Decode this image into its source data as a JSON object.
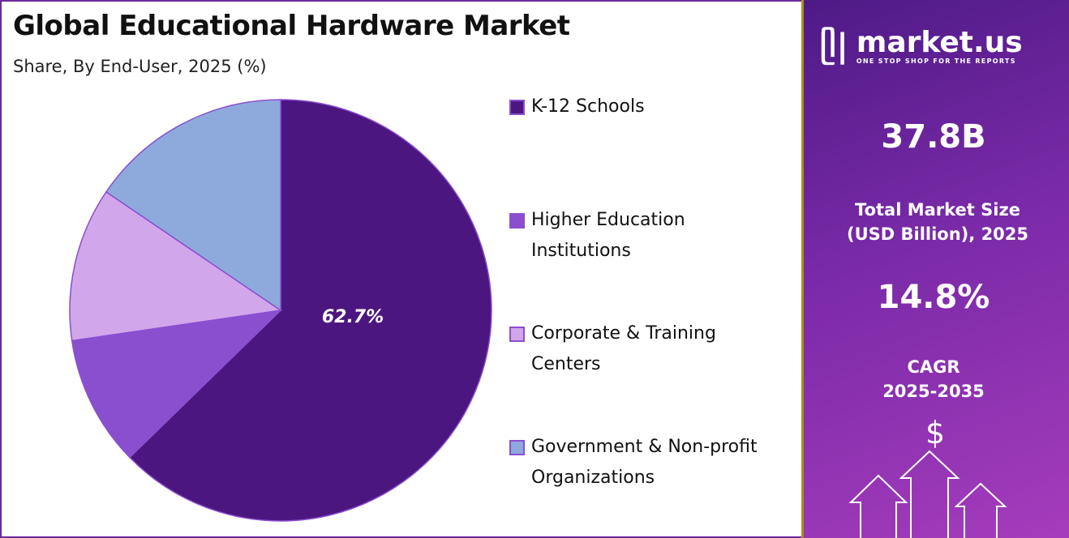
{
  "chart_data": {
    "type": "pie",
    "title": "Global Educational Hardware Market",
    "subtitle": "Share, By End-User, 2025 (%)",
    "categories": [
      "K-12 Schools",
      "Higher Education Institutions",
      "Corporate & Training Centers",
      "Government & Non-profit Organizations"
    ],
    "values": [
      62.7,
      10.0,
      11.8,
      15.5
    ],
    "colors": [
      "#4c1680",
      "#8a4fcf",
      "#d2a6ea",
      "#8eaadd"
    ],
    "data_labels": [
      "62.7%",
      "",
      "",
      ""
    ],
    "legend_position": "right"
  },
  "legend": [
    {
      "line1": "K-12 Schools",
      "line2": ""
    },
    {
      "line1": "Higher Education",
      "line2": "Institutions"
    },
    {
      "line1": "Corporate & Training",
      "line2": "Centers"
    },
    {
      "line1": "Government & Non-profit",
      "line2": "Organizations"
    }
  ],
  "panel": {
    "logo_name": "market.us",
    "logo_tagline": "ONE STOP SHOP FOR THE REPORTS",
    "market_size": "37.8B",
    "market_size_label_1": "Total Market Size",
    "market_size_label_2": "(USD Billion), 2025",
    "cagr": "14.8%",
    "cagr_label_1": "CAGR",
    "cagr_label_2": "2025-2035",
    "dollar": "$"
  }
}
